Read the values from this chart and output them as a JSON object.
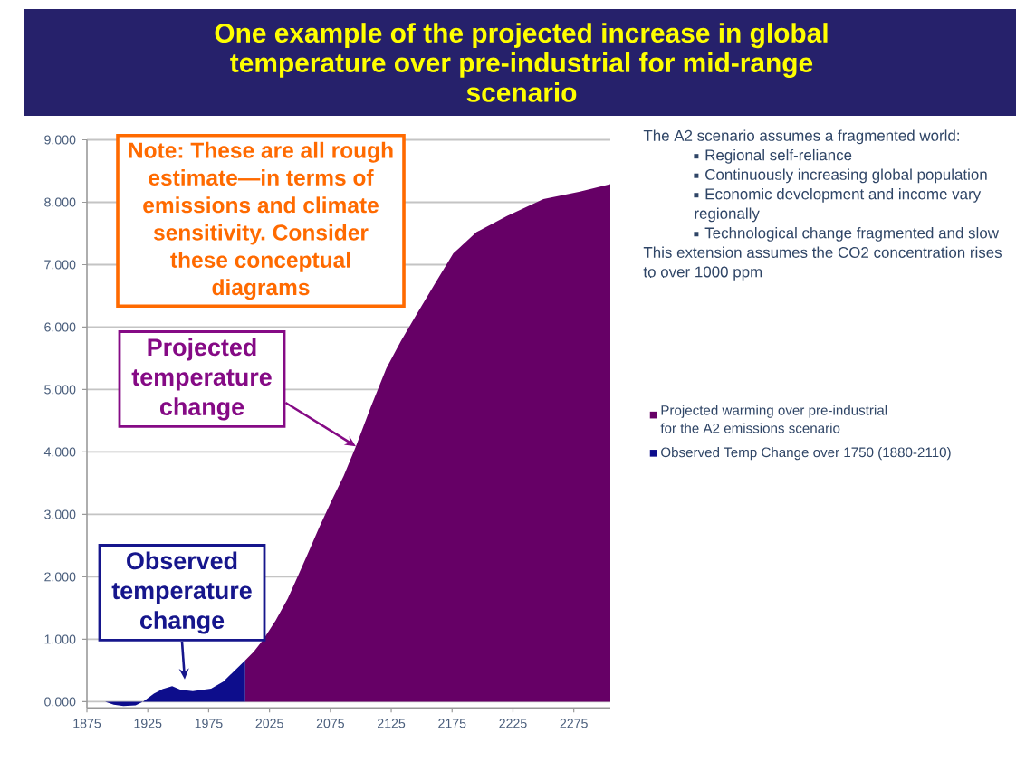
{
  "chart_data": {
    "type": "area",
    "title": "One example of the projected increase in global temperature over pre-industrial for mid-range scenario",
    "xlim": [
      1875,
      2305
    ],
    "xticks": [
      1875,
      1925,
      1975,
      2025,
      2075,
      2125,
      2175,
      2225,
      2275
    ],
    "ylim": [
      -0.1,
      9
    ],
    "yticks": [
      {
        "value": 0,
        "label": "0.000"
      },
      {
        "value": 1,
        "label": "1.000"
      },
      {
        "value": 2,
        "label": "2.000"
      },
      {
        "value": 3,
        "label": "3.000"
      },
      {
        "value": 4,
        "label": "4.000"
      },
      {
        "value": 5,
        "label": "5.000"
      },
      {
        "value": 6,
        "label": "6.000"
      },
      {
        "value": 7,
        "label": "7.000"
      },
      {
        "value": 8,
        "label": "8.000"
      },
      {
        "value": 9,
        "label": "9.000"
      }
    ],
    "grid": "y",
    "legend": "right",
    "series": [
      {
        "name": "Projected warming over pre-industrial for the A2 emissions scenario",
        "color": "#660066",
        "x": [
          2005,
          2012,
          2020,
          2030,
          2040,
          2048,
          2056,
          2066,
          2076,
          2086,
          2096,
          2108,
          2121,
          2133,
          2146,
          2161,
          2176,
          2195,
          2220,
          2250,
          2280,
          2305
        ],
        "values": [
          0.66,
          0.8,
          1.0,
          1.3,
          1.65,
          2.0,
          2.35,
          2.8,
          3.22,
          3.62,
          4.09,
          4.71,
          5.34,
          5.78,
          6.21,
          6.7,
          7.18,
          7.52,
          7.78,
          8.05,
          8.17,
          8.29
        ]
      },
      {
        "name": "Observed Temp Change over 1750 (1880-2110)",
        "color": "#0d0d8c",
        "x": [
          1875,
          1890,
          1897,
          1905,
          1915,
          1921,
          1930,
          1937,
          1945,
          1952,
          1962,
          1977,
          1987,
          1997,
          2005
        ],
        "values": [
          0.0,
          0.0,
          -0.05,
          -0.07,
          -0.06,
          0.0,
          0.13,
          0.2,
          0.25,
          0.19,
          0.17,
          0.21,
          0.32,
          0.51,
          0.66
        ]
      }
    ],
    "annotations": [
      "Note: These are all rough estimate—in terms of emissions and climate sensitivity. Consider these conceptual diagrams",
      {
        "text": "Projected temperature change",
        "x": 2096,
        "y": 4.09
      },
      "Observed temperature change",
      "The A2 scenario assumes a fragmented world:",
      "Regional self-reliance",
      "Continuously increasing global population",
      "Economic development and income vary regionally",
      "Technological change fragmented and slow",
      "This extension assumes the CO2 concentration rises to over 1000 ppm"
    ]
  }
}
